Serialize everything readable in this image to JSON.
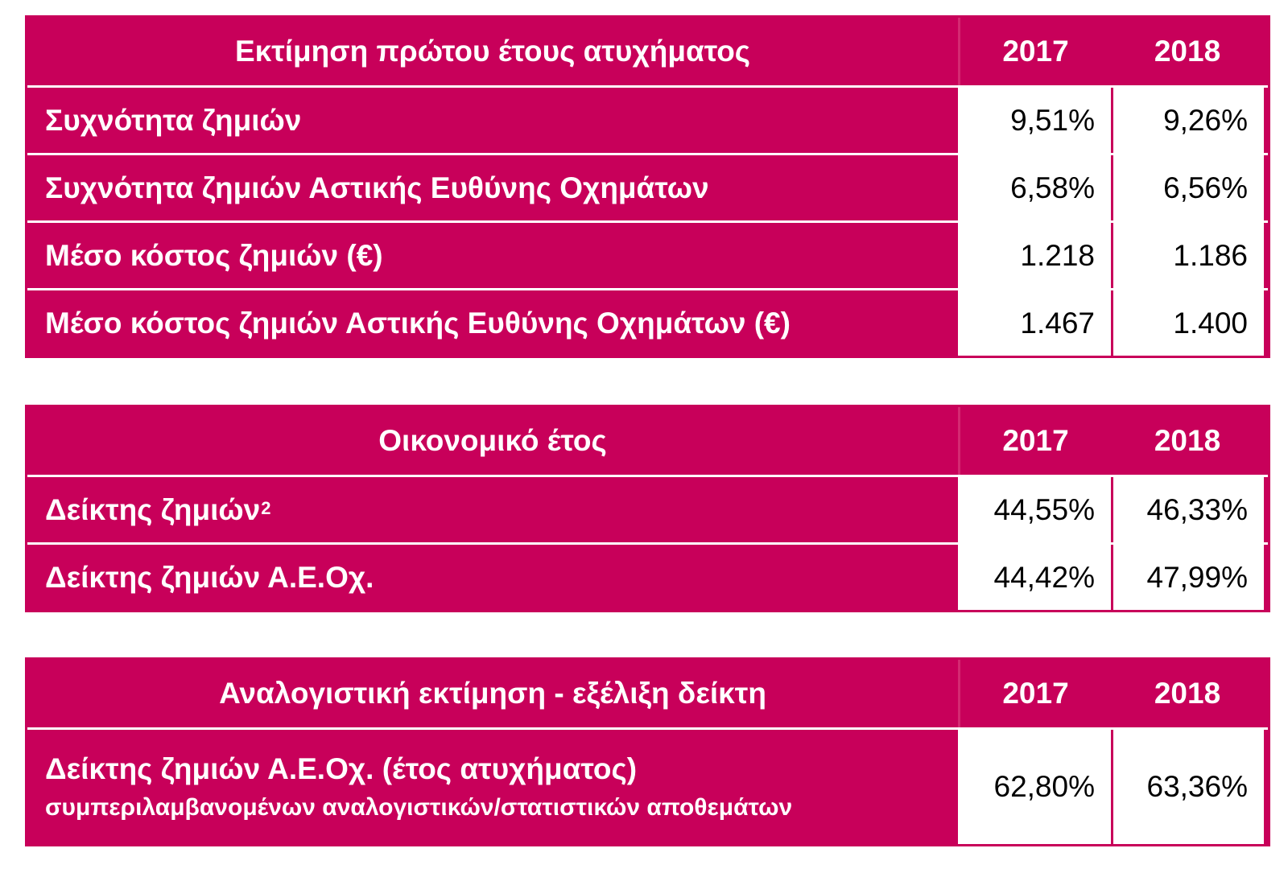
{
  "table1": {
    "header": {
      "title": "Εκτίμηση πρώτου έτους ατυχήματος",
      "y1": "2017",
      "y2": "2018"
    },
    "rows": [
      {
        "label": "Συχνότητα ζημιών",
        "v1": "9,51%",
        "v2": "9,26%"
      },
      {
        "label": "Συχνότητα ζημιών Αστικής Ευθύνης Οχημάτων",
        "v1": "6,58%",
        "v2": "6,56%"
      },
      {
        "label": "Μέσο κόστος ζημιών (€)",
        "v1": "1.218",
        "v2": "1.186"
      },
      {
        "label": "Μέσο κόστος ζημιών Αστικής Ευθύνης Οχημάτων (€)",
        "v1": "1.467",
        "v2": "1.400"
      }
    ]
  },
  "table2": {
    "header": {
      "title": "Οικονομικό έτος",
      "y1": "2017",
      "y2": "2018"
    },
    "rows": [
      {
        "label": "Δείκτης ζημιών",
        "sup": "2",
        "v1": "44,55%",
        "v2": "46,33%"
      },
      {
        "label": "Δείκτης ζημιών Α.Ε.Οχ.",
        "v1": "44,42%",
        "v2": "47,99%"
      }
    ]
  },
  "table3": {
    "header": {
      "title": "Αναλογιστική εκτίμηση -  εξέλιξη δείκτη",
      "y1": "2017",
      "y2": "2018"
    },
    "rows": [
      {
        "label": "Δείκτης ζημιών Α.Ε.Οχ. (έτος ατυχήματος)",
        "sublabel": "συμπεριλαμβανομένων αναλογιστικών/στατιστικών αποθεμάτων",
        "v1": "62,80%",
        "v2": "63,36%"
      }
    ]
  },
  "colors": {
    "accent": "#c8005a",
    "cell_bg": "#ffffff"
  }
}
